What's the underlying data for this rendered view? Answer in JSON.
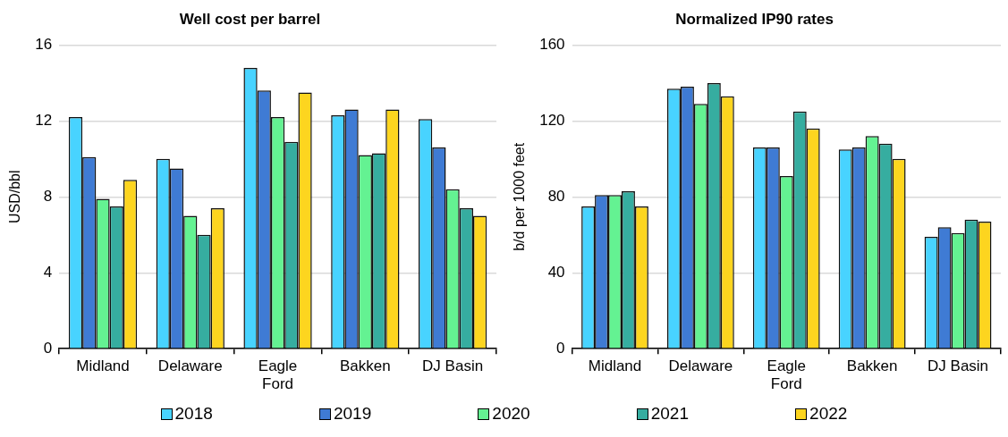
{
  "chart_data": [
    {
      "type": "bar",
      "title": "Well cost per barrel",
      "ylabel": "USD/bbl",
      "categories": [
        "Midland",
        "Delaware",
        "Eagle Ford",
        "Bakken",
        "DJ Basin"
      ],
      "series": [
        {
          "name": "2018",
          "color": "#48d3ff",
          "values": [
            12.2,
            10.0,
            14.8,
            12.3,
            12.1
          ]
        },
        {
          "name": "2019",
          "color": "#3f7bd4",
          "values": [
            10.1,
            9.5,
            13.6,
            12.6,
            10.6
          ]
        },
        {
          "name": "2020",
          "color": "#64f292",
          "values": [
            7.9,
            7.0,
            12.2,
            10.2,
            8.4
          ]
        },
        {
          "name": "2021",
          "color": "#36ada0",
          "values": [
            7.5,
            6.0,
            10.9,
            10.3,
            7.4
          ]
        },
        {
          "name": "2022",
          "color": "#fdd51f",
          "values": [
            8.9,
            7.4,
            13.5,
            12.6,
            7.0
          ]
        }
      ],
      "ylim": [
        0,
        16
      ],
      "yticks": [
        0,
        4,
        8,
        12,
        16
      ],
      "grid": "y",
      "legend": "bottom"
    },
    {
      "type": "bar",
      "title": "Normalized IP90 rates",
      "ylabel": "b/d per 1000 feet",
      "categories": [
        "Midland",
        "Delaware",
        "Eagle Ford",
        "Bakken",
        "DJ Basin"
      ],
      "series": [
        {
          "name": "2018",
          "color": "#48d3ff",
          "values": [
            75,
            137,
            106,
            105,
            59
          ]
        },
        {
          "name": "2019",
          "color": "#3f7bd4",
          "values": [
            81,
            138,
            106,
            106,
            64
          ]
        },
        {
          "name": "2020",
          "color": "#64f292",
          "values": [
            81,
            129,
            91,
            112,
            61
          ]
        },
        {
          "name": "2021",
          "color": "#36ada0",
          "values": [
            83,
            140,
            125,
            108,
            68
          ]
        },
        {
          "name": "2022",
          "color": "#fdd51f",
          "values": [
            75,
            133,
            116,
            100,
            67
          ]
        }
      ],
      "ylim": [
        0,
        160
      ],
      "yticks": [
        0,
        40,
        80,
        120,
        160
      ],
      "grid": "y"
    }
  ]
}
